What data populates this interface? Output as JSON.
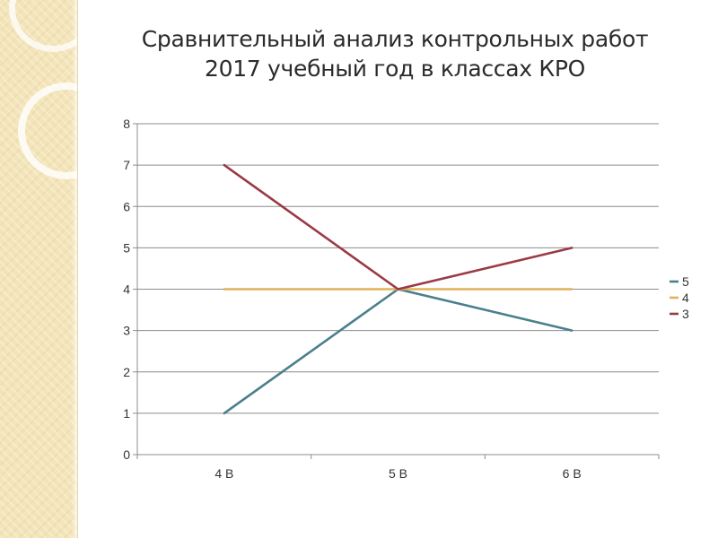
{
  "chart_data": {
    "type": "line",
    "title": "Сравнительный анализ контрольных работ",
    "subtitle": "2017 учебный год в классах КРО",
    "categories": [
      "4 В",
      "5 В",
      "6 В"
    ],
    "ylim": [
      0,
      8
    ],
    "y_ticks": [
      "0",
      "1",
      "2",
      "3",
      "4",
      "5",
      "6",
      "7",
      "8"
    ],
    "grid": true,
    "legend_position": "right",
    "series": [
      {
        "name": "5",
        "values": [
          1,
          4,
          3
        ],
        "color": "#4a7f8c"
      },
      {
        "name": "4",
        "values": [
          4,
          4,
          4
        ],
        "color": "#e0b25a"
      },
      {
        "name": "3",
        "values": [
          7,
          4,
          5
        ],
        "color": "#9a3a44"
      }
    ]
  }
}
